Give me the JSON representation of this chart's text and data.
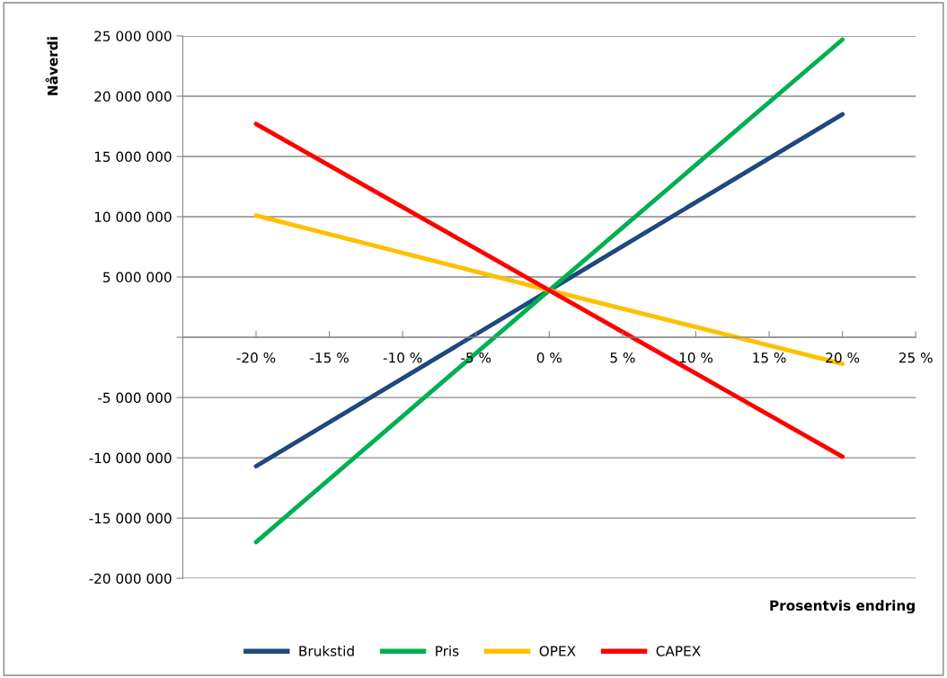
{
  "chart_data": {
    "type": "line",
    "xlabel": "Prosentvis endring",
    "ylabel": "Nåverdi",
    "x": [
      -20,
      0,
      20
    ],
    "series": [
      {
        "name": "Brukstid",
        "color": "#1f497d",
        "values": [
          -10700000,
          3900000,
          18500000
        ]
      },
      {
        "name": "Pris",
        "color": "#00b050",
        "values": [
          -17000000,
          3900000,
          24700000
        ]
      },
      {
        "name": "OPEX",
        "color": "#ffc000",
        "values": [
          10100000,
          3900000,
          -2200000
        ]
      },
      {
        "name": "CAPEX",
        "color": "#ff0000",
        "values": [
          17700000,
          3900000,
          -9900000
        ]
      }
    ],
    "xlim": [
      -25,
      25
    ],
    "xticks": [
      {
        "value": -20,
        "label": "-20 %"
      },
      {
        "value": -15,
        "label": "-15 %"
      },
      {
        "value": -10,
        "label": "-10 %"
      },
      {
        "value": -5,
        "label": "-5 %"
      },
      {
        "value": 0,
        "label": "0 %"
      },
      {
        "value": 5,
        "label": "5 %"
      },
      {
        "value": 10,
        "label": "10 %"
      },
      {
        "value": 15,
        "label": "15 %"
      },
      {
        "value": 20,
        "label": "20 %"
      },
      {
        "value": 25,
        "label": "25 %"
      }
    ],
    "ylim": [
      -20000000,
      25000000
    ],
    "yticks": [
      {
        "value": -20000000,
        "label": "-20 000 000"
      },
      {
        "value": -15000000,
        "label": "-15 000 000"
      },
      {
        "value": -10000000,
        "label": "-10 000 000"
      },
      {
        "value": -5000000,
        "label": "-5 000 000"
      },
      {
        "value": 0,
        "label": null
      },
      {
        "value": 5000000,
        "label": "5 000 000"
      },
      {
        "value": 10000000,
        "label": "10 000 000"
      },
      {
        "value": 15000000,
        "label": "15 000 000"
      },
      {
        "value": 20000000,
        "label": "20 000 000"
      },
      {
        "value": 25000000,
        "label": "25 000 000"
      }
    ],
    "grid": "y",
    "legend": "bottom",
    "marker": "none",
    "line_style": "solid"
  }
}
